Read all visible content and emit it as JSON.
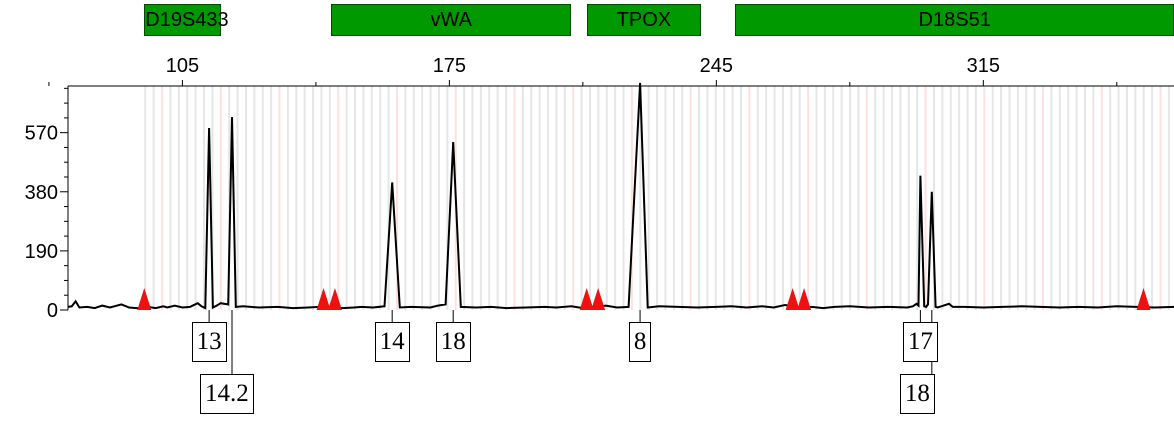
{
  "chart_data": {
    "type": "line",
    "title": "",
    "xlabel": "",
    "ylabel": "",
    "xlim": [
      75,
      365
    ],
    "ylim": [
      0,
      720
    ],
    "x_ticks": [
      105,
      175,
      245,
      315
    ],
    "x_tick_labels": [
      "105",
      "175",
      "245",
      "315"
    ],
    "y_ticks": [
      0,
      190,
      380,
      570
    ],
    "y_tick_labels": [
      "0",
      "190",
      "380",
      "570"
    ],
    "loci": [
      {
        "name": "D19S433",
        "start": 95,
        "end": 115
      },
      {
        "name": "vWA",
        "end": 207,
        "start": 144
      },
      {
        "name": "TPOX",
        "start": 211,
        "end": 241
      },
      {
        "name": "D18S51",
        "start": 250,
        "end": 366
      }
    ],
    "series": [
      {
        "values": [
          [
            75,
            10
          ],
          [
            76,
            12
          ],
          [
            77,
            28
          ],
          [
            78,
            8
          ],
          [
            80,
            10
          ],
          [
            82,
            6
          ],
          [
            84,
            14
          ],
          [
            86,
            8
          ],
          [
            89,
            18
          ],
          [
            91,
            8
          ],
          [
            93,
            6
          ],
          [
            95,
            4
          ],
          [
            96,
            10
          ],
          [
            98,
            6
          ],
          [
            100,
            12
          ],
          [
            101,
            8
          ],
          [
            103,
            14
          ],
          [
            105,
            8
          ],
          [
            107,
            10
          ],
          [
            109,
            22
          ],
          [
            110,
            12
          ],
          [
            111,
            6
          ],
          [
            112,
            585
          ],
          [
            113,
            8
          ],
          [
            114,
            14
          ],
          [
            115,
            22
          ],
          [
            117,
            18
          ],
          [
            118,
            620
          ],
          [
            119,
            10
          ],
          [
            121,
            12
          ],
          [
            125,
            8
          ],
          [
            130,
            10
          ],
          [
            134,
            6
          ],
          [
            138,
            8
          ],
          [
            141,
            10
          ],
          [
            144,
            8
          ],
          [
            147,
            6
          ],
          [
            150,
            8
          ],
          [
            152,
            10
          ],
          [
            155,
            8
          ],
          [
            158,
            12
          ],
          [
            160,
            410
          ],
          [
            162,
            8
          ],
          [
            165,
            10
          ],
          [
            170,
            8
          ],
          [
            172,
            14
          ],
          [
            174,
            18
          ],
          [
            176,
            540
          ],
          [
            178,
            10
          ],
          [
            182,
            8
          ],
          [
            186,
            10
          ],
          [
            190,
            6
          ],
          [
            195,
            8
          ],
          [
            200,
            10
          ],
          [
            203,
            8
          ],
          [
            207,
            12
          ],
          [
            210,
            6
          ],
          [
            213,
            10
          ],
          [
            216,
            14
          ],
          [
            219,
            8
          ],
          [
            222,
            10
          ],
          [
            225,
            730
          ],
          [
            227,
            8
          ],
          [
            230,
            12
          ],
          [
            235,
            10
          ],
          [
            240,
            8
          ],
          [
            245,
            10
          ],
          [
            249,
            12
          ],
          [
            253,
            8
          ],
          [
            257,
            12
          ],
          [
            260,
            8
          ],
          [
            263,
            16
          ],
          [
            267,
            8
          ],
          [
            270,
            10
          ],
          [
            273,
            6
          ],
          [
            276,
            10
          ],
          [
            280,
            12
          ],
          [
            285,
            8
          ],
          [
            290,
            10
          ],
          [
            295,
            8
          ],
          [
            298,
            14
          ],
          [
            300,
            10
          ],
          [
            303,
            8
          ],
          [
            306,
            20
          ],
          [
            307,
            10
          ],
          [
            296.5,
            12
          ],
          [
            297.5,
            20
          ],
          [
            298.5,
            432
          ],
          [
            299.5,
            12
          ],
          [
            300.5,
            18
          ],
          [
            301.5,
            380
          ],
          [
            302.5,
            10
          ],
          [
            304,
            12
          ],
          [
            310,
            10
          ],
          [
            315,
            8
          ],
          [
            320,
            10
          ],
          [
            325,
            12
          ],
          [
            330,
            10
          ],
          [
            335,
            8
          ],
          [
            340,
            10
          ],
          [
            345,
            8
          ],
          [
            350,
            12
          ],
          [
            355,
            10
          ],
          [
            360,
            8
          ],
          [
            365,
            10
          ]
        ]
      }
    ],
    "peak_labels": [
      {
        "label": "13",
        "x": 112
      },
      {
        "label": "14.2",
        "x": 118,
        "row": 2
      },
      {
        "label": "14",
        "x": 160
      },
      {
        "label": "18",
        "x": 176
      },
      {
        "label": "8",
        "x": 225
      },
      {
        "label": "17",
        "x": 298.5
      },
      {
        "label": "18",
        "x": 301.5,
        "row": 2
      }
    ],
    "markers": [
      95,
      142,
      145,
      211,
      214,
      265,
      268,
      357
    ],
    "grid": false,
    "legend": "none",
    "colors": {
      "trace": "#000000",
      "marker": "#ee1111",
      "locus": "#009900",
      "stripe_gray": "#e6e6e6",
      "stripe_pink": "#ffe0e0"
    }
  }
}
